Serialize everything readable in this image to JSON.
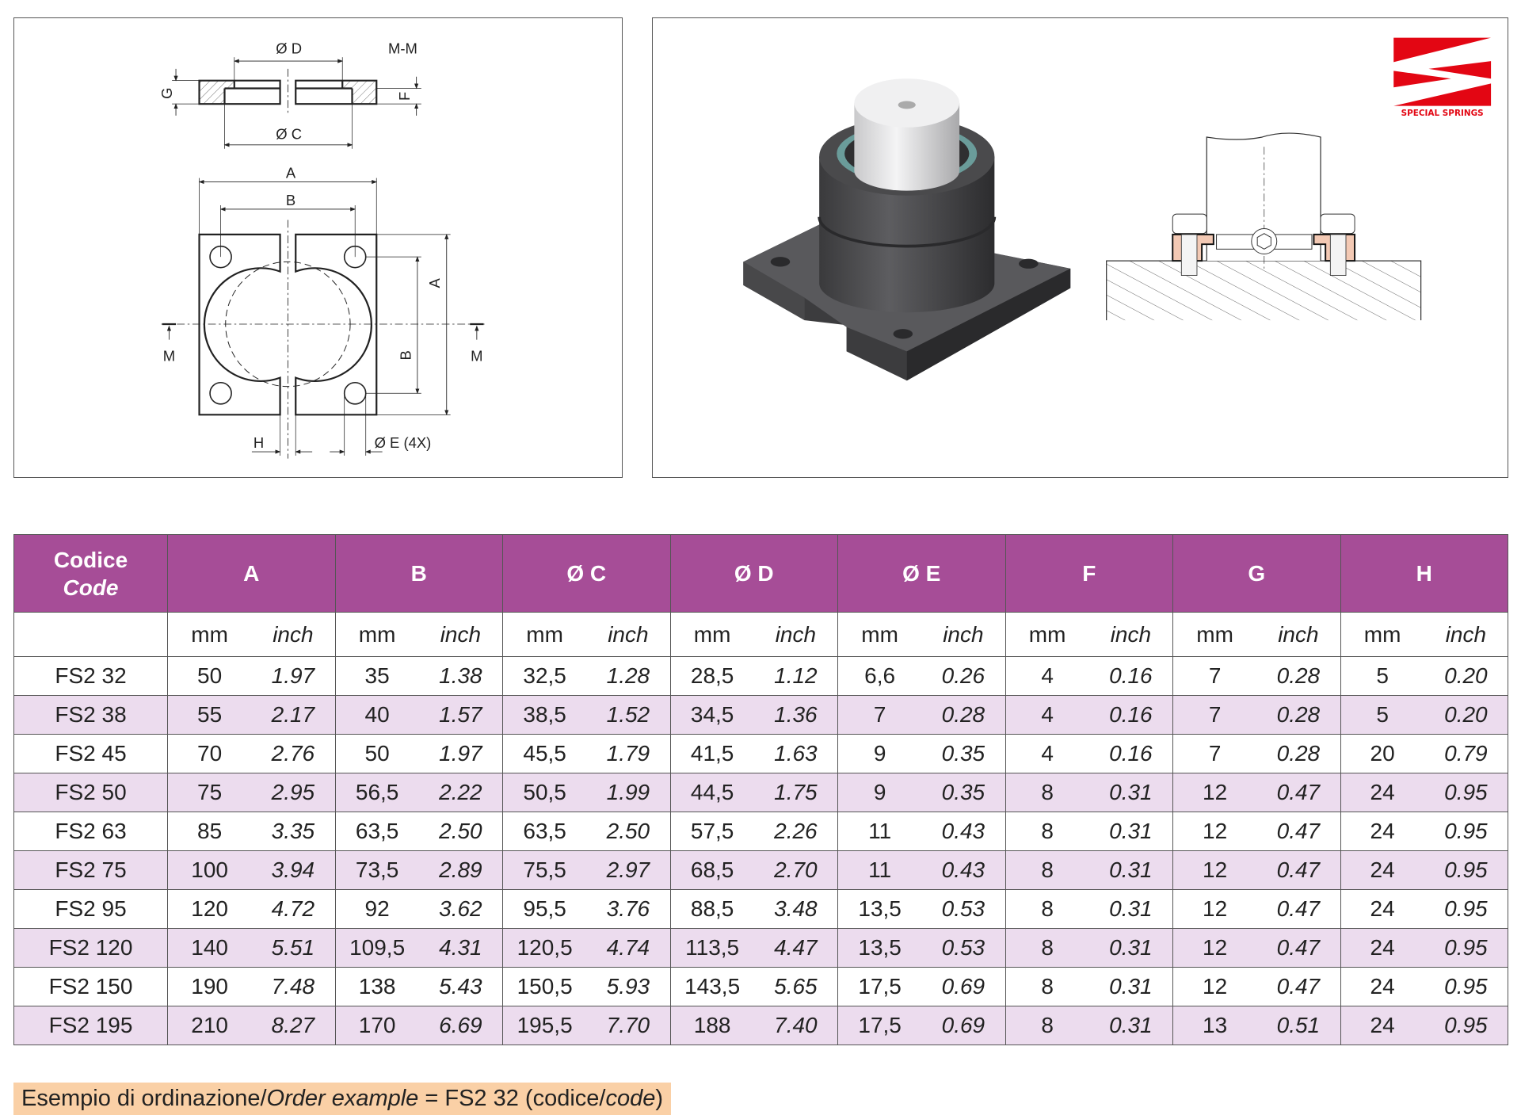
{
  "drawing": {
    "section_label": "M-M",
    "labels": {
      "D": "Ø D",
      "C": "Ø C",
      "G": "G",
      "F": "F",
      "A": "A",
      "B": "B",
      "M": "M",
      "H": "H",
      "E": "Ø E (4X)"
    }
  },
  "logo": {
    "text": "SPECIAL SPRINGS",
    "color": "#e30613"
  },
  "colors": {
    "header": "#a64d97",
    "row_alt": "#ecdcee",
    "order_bg": "#fad0a6",
    "flange": "#f3c9b4"
  },
  "table": {
    "code_header_it": "Codice",
    "code_header_en": "Code",
    "groups": [
      "A",
      "B",
      "Ø C",
      "Ø D",
      "Ø E",
      "F",
      "G",
      "H"
    ],
    "unit_mm": "mm",
    "unit_inch": "inch",
    "rows": [
      [
        "FS2 32",
        "50",
        "1.97",
        "35",
        "1.38",
        "32,5",
        "1.28",
        "28,5",
        "1.12",
        "6,6",
        "0.26",
        "4",
        "0.16",
        "7",
        "0.28",
        "5",
        "0.20"
      ],
      [
        "FS2 38",
        "55",
        "2.17",
        "40",
        "1.57",
        "38,5",
        "1.52",
        "34,5",
        "1.36",
        "7",
        "0.28",
        "4",
        "0.16",
        "7",
        "0.28",
        "5",
        "0.20"
      ],
      [
        "FS2 45",
        "70",
        "2.76",
        "50",
        "1.97",
        "45,5",
        "1.79",
        "41,5",
        "1.63",
        "9",
        "0.35",
        "4",
        "0.16",
        "7",
        "0.28",
        "20",
        "0.79"
      ],
      [
        "FS2 50",
        "75",
        "2.95",
        "56,5",
        "2.22",
        "50,5",
        "1.99",
        "44,5",
        "1.75",
        "9",
        "0.35",
        "8",
        "0.31",
        "12",
        "0.47",
        "24",
        "0.95"
      ],
      [
        "FS2 63",
        "85",
        "3.35",
        "63,5",
        "2.50",
        "63,5",
        "2.50",
        "57,5",
        "2.26",
        "11",
        "0.43",
        "8",
        "0.31",
        "12",
        "0.47",
        "24",
        "0.95"
      ],
      [
        "FS2 75",
        "100",
        "3.94",
        "73,5",
        "2.89",
        "75,5",
        "2.97",
        "68,5",
        "2.70",
        "11",
        "0.43",
        "8",
        "0.31",
        "12",
        "0.47",
        "24",
        "0.95"
      ],
      [
        "FS2 95",
        "120",
        "4.72",
        "92",
        "3.62",
        "95,5",
        "3.76",
        "88,5",
        "3.48",
        "13,5",
        "0.53",
        "8",
        "0.31",
        "12",
        "0.47",
        "24",
        "0.95"
      ],
      [
        "FS2 120",
        "140",
        "5.51",
        "109,5",
        "4.31",
        "120,5",
        "4.74",
        "113,5",
        "4.47",
        "13,5",
        "0.53",
        "8",
        "0.31",
        "12",
        "0.47",
        "24",
        "0.95"
      ],
      [
        "FS2 150",
        "190",
        "7.48",
        "138",
        "5.43",
        "150,5",
        "5.93",
        "143,5",
        "5.65",
        "17,5",
        "0.69",
        "8",
        "0.31",
        "12",
        "0.47",
        "24",
        "0.95"
      ],
      [
        "FS2 195",
        "210",
        "8.27",
        "170",
        "6.69",
        "195,5",
        "7.70",
        "188",
        "7.40",
        "17,5",
        "0.69",
        "8",
        "0.31",
        "13",
        "0.51",
        "24",
        "0.95"
      ]
    ]
  },
  "order_example": {
    "prefix": "Esempio di ordinazione/",
    "prefix_en": "Order example",
    "middle": " = FS2 32 (codice/",
    "suffix_en": "code",
    "close": ")"
  }
}
